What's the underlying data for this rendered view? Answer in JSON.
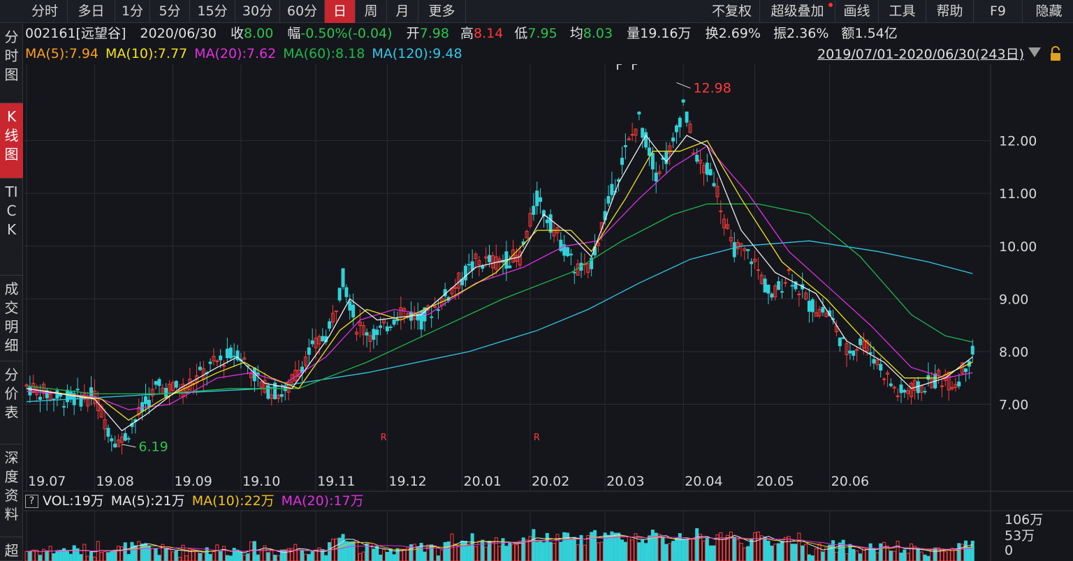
{
  "toolbar": {
    "tabs": [
      "分时",
      "多日",
      "1分",
      "5分",
      "15分",
      "30分",
      "60分",
      "日",
      "周",
      "月",
      "更多"
    ],
    "active_tab": "日",
    "right_items": [
      "不复权",
      "超级叠加",
      "画线",
      "工具",
      "帮助",
      "F9",
      "隐藏"
    ]
  },
  "sidebar": {
    "items": [
      {
        "label": "分时图"
      },
      {
        "label": "K线图"
      },
      {
        "label": "TICK"
      },
      {
        "label": "成交明细"
      },
      {
        "label": "分价表"
      },
      {
        "label": "深度资料"
      },
      {
        "label": "超"
      }
    ]
  },
  "quote": {
    "code_name": "002161[远望谷]",
    "date": "2020/06/30",
    "close_label": "收",
    "close": "8.00",
    "change_label": "幅",
    "change": "-0.50%(-0.04)",
    "open_label": "开",
    "open": "7.98",
    "high_label": "高",
    "high": "8.14",
    "low_label": "低",
    "low": "7.95",
    "avg_label": "均",
    "avg": "8.03",
    "volume_label": "量",
    "volume": "19.16万",
    "turnover_label": "换",
    "turnover": "2.69%",
    "amplitude_label": "振",
    "amplitude": "2.36%",
    "amount_label": "额",
    "amount": "1.54亿"
  },
  "ma_legend": [
    {
      "text": "MA(5):7.94",
      "color": "#ff9f1c"
    },
    {
      "text": "MA(10):7.77",
      "color": "#f2e21b"
    },
    {
      "text": "MA(20):7.62",
      "color": "#e030e0"
    },
    {
      "text": "MA(60):8.18",
      "color": "#1fb84a"
    },
    {
      "text": "MA(120):9.48",
      "color": "#33c8e8"
    }
  ],
  "range_text": "2019/07/01-2020/06/30(243日)",
  "vol_legend": [
    {
      "text": "VOL:19万",
      "color": "#e8e8e8"
    },
    {
      "text": "MA(5):21万",
      "color": "#e8e8e8"
    },
    {
      "text": "MA(10):22万",
      "color": "#f2c21b"
    },
    {
      "text": "MA(20):17万",
      "color": "#e030e0"
    }
  ],
  "colors": {
    "up": "#ff3b3b",
    "down": "#33d0d8",
    "ma5": "#f0f0f0",
    "ma10": "#f2e21b",
    "ma20": "#e030e0",
    "ma60": "#1fb84a",
    "ma120": "#33c8e8",
    "grid": "#2a2d35",
    "axis_text": "#d8d8d8"
  },
  "chart_data": {
    "type": "candlestick",
    "y_ticks": [
      "12.00",
      "11.00",
      "10.00",
      "9.00",
      "8.00",
      "7.00"
    ],
    "ylim": [
      5.75,
      13.45
    ],
    "x_ticks": [
      "19.07",
      "19.08",
      "19.09",
      "19.10",
      "19.11",
      "19.12",
      "20.01",
      "20.02",
      "20.03",
      "20.04",
      "20.05",
      "20.06"
    ],
    "high_marker": "12.98",
    "low_marker": "6.19",
    "r_markers": [
      "R",
      "R"
    ],
    "close_path": [
      [
        0,
        7.35
      ],
      [
        10,
        7.1
      ],
      [
        20,
        7.15
      ],
      [
        25,
        6.4
      ],
      [
        28,
        6.3
      ],
      [
        33,
        6.8
      ],
      [
        38,
        7.3
      ],
      [
        46,
        7.3
      ],
      [
        56,
        7.8
      ],
      [
        62,
        8.0
      ],
      [
        70,
        7.3
      ],
      [
        76,
        7.2
      ],
      [
        82,
        7.9
      ],
      [
        89,
        8.4
      ],
      [
        93,
        9.4
      ],
      [
        97,
        8.5
      ],
      [
        103,
        8.3
      ],
      [
        110,
        8.8
      ],
      [
        116,
        8.6
      ],
      [
        124,
        9.1
      ],
      [
        132,
        9.7
      ],
      [
        138,
        9.7
      ],
      [
        145,
        9.8
      ],
      [
        150,
        10.9
      ],
      [
        156,
        10.2
      ],
      [
        161,
        9.6
      ],
      [
        165,
        9.5
      ],
      [
        170,
        10.6
      ],
      [
        176,
        11.8
      ],
      [
        180,
        12.4
      ],
      [
        185,
        11.4
      ],
      [
        190,
        11.9
      ],
      [
        193,
        12.7
      ],
      [
        197,
        11.6
      ],
      [
        202,
        11.3
      ],
      [
        207,
        10.0
      ],
      [
        213,
        9.8
      ],
      [
        219,
        9.0
      ],
      [
        224,
        9.5
      ],
      [
        230,
        8.9
      ],
      [
        236,
        8.7
      ],
      [
        241,
        8.0
      ],
      [
        246,
        8.2
      ],
      [
        251,
        7.7
      ],
      [
        256,
        7.2
      ],
      [
        262,
        7.3
      ],
      [
        268,
        7.5
      ],
      [
        273,
        7.4
      ],
      [
        278,
        8.0
      ]
    ],
    "ma_paths": {
      "ma5": [
        [
          0,
          7.3
        ],
        [
          20,
          7.1
        ],
        [
          28,
          6.5
        ],
        [
          35,
          6.8
        ],
        [
          45,
          7.3
        ],
        [
          56,
          7.7
        ],
        [
          62,
          7.9
        ],
        [
          70,
          7.4
        ],
        [
          78,
          7.3
        ],
        [
          89,
          8.3
        ],
        [
          95,
          9.0
        ],
        [
          103,
          8.6
        ],
        [
          116,
          8.7
        ],
        [
          132,
          9.6
        ],
        [
          145,
          9.8
        ],
        [
          152,
          10.6
        ],
        [
          160,
          10.2
        ],
        [
          166,
          9.8
        ],
        [
          174,
          11.2
        ],
        [
          182,
          12.1
        ],
        [
          188,
          11.6
        ],
        [
          194,
          12.1
        ],
        [
          200,
          11.9
        ],
        [
          210,
          10.3
        ],
        [
          220,
          9.5
        ],
        [
          232,
          9.1
        ],
        [
          241,
          8.2
        ],
        [
          252,
          7.8
        ],
        [
          260,
          7.3
        ],
        [
          270,
          7.5
        ],
        [
          278,
          7.9
        ]
      ],
      "ma10": [
        [
          0,
          7.3
        ],
        [
          22,
          7.1
        ],
        [
          30,
          6.7
        ],
        [
          40,
          7.1
        ],
        [
          56,
          7.6
        ],
        [
          64,
          7.8
        ],
        [
          72,
          7.5
        ],
        [
          80,
          7.3
        ],
        [
          92,
          8.4
        ],
        [
          100,
          8.8
        ],
        [
          110,
          8.6
        ],
        [
          124,
          9.0
        ],
        [
          138,
          9.5
        ],
        [
          150,
          10.3
        ],
        [
          160,
          10.3
        ],
        [
          166,
          9.9
        ],
        [
          176,
          10.9
        ],
        [
          184,
          11.8
        ],
        [
          192,
          11.8
        ],
        [
          200,
          12.0
        ],
        [
          210,
          10.9
        ],
        [
          222,
          9.7
        ],
        [
          235,
          9.0
        ],
        [
          245,
          8.3
        ],
        [
          258,
          7.5
        ],
        [
          268,
          7.5
        ],
        [
          278,
          7.8
        ]
      ],
      "ma20": [
        [
          0,
          7.25
        ],
        [
          20,
          7.15
        ],
        [
          30,
          6.9
        ],
        [
          42,
          7.0
        ],
        [
          56,
          7.5
        ],
        [
          66,
          7.6
        ],
        [
          76,
          7.4
        ],
        [
          88,
          7.9
        ],
        [
          98,
          8.6
        ],
        [
          108,
          8.8
        ],
        [
          118,
          8.7
        ],
        [
          132,
          9.3
        ],
        [
          146,
          9.6
        ],
        [
          158,
          10.0
        ],
        [
          168,
          10.1
        ],
        [
          180,
          10.9
        ],
        [
          190,
          11.5
        ],
        [
          200,
          11.9
        ],
        [
          212,
          11.0
        ],
        [
          224,
          9.9
        ],
        [
          236,
          9.2
        ],
        [
          248,
          8.5
        ],
        [
          260,
          7.7
        ],
        [
          270,
          7.5
        ],
        [
          278,
          7.6
        ]
      ],
      "ma60": [
        [
          0,
          7.35
        ],
        [
          20,
          7.2
        ],
        [
          40,
          7.2
        ],
        [
          60,
          7.3
        ],
        [
          80,
          7.3
        ],
        [
          100,
          7.8
        ],
        [
          120,
          8.4
        ],
        [
          140,
          9.0
        ],
        [
          160,
          9.5
        ],
        [
          175,
          10.1
        ],
        [
          190,
          10.6
        ],
        [
          200,
          10.8
        ],
        [
          215,
          10.8
        ],
        [
          230,
          10.6
        ],
        [
          245,
          9.8
        ],
        [
          260,
          8.7
        ],
        [
          270,
          8.3
        ],
        [
          278,
          8.18
        ]
      ],
      "ma120": [
        [
          0,
          7.05
        ],
        [
          40,
          7.2
        ],
        [
          70,
          7.3
        ],
        [
          100,
          7.6
        ],
        [
          130,
          8.0
        ],
        [
          150,
          8.4
        ],
        [
          165,
          8.8
        ],
        [
          180,
          9.3
        ],
        [
          195,
          9.75
        ],
        [
          210,
          10.0
        ],
        [
          230,
          10.1
        ],
        [
          250,
          9.9
        ],
        [
          265,
          9.7
        ],
        [
          278,
          9.48
        ]
      ]
    },
    "vol_ticks": [
      "106万",
      "53万",
      "0"
    ],
    "vol_ylim": [
      0,
      130
    ]
  }
}
